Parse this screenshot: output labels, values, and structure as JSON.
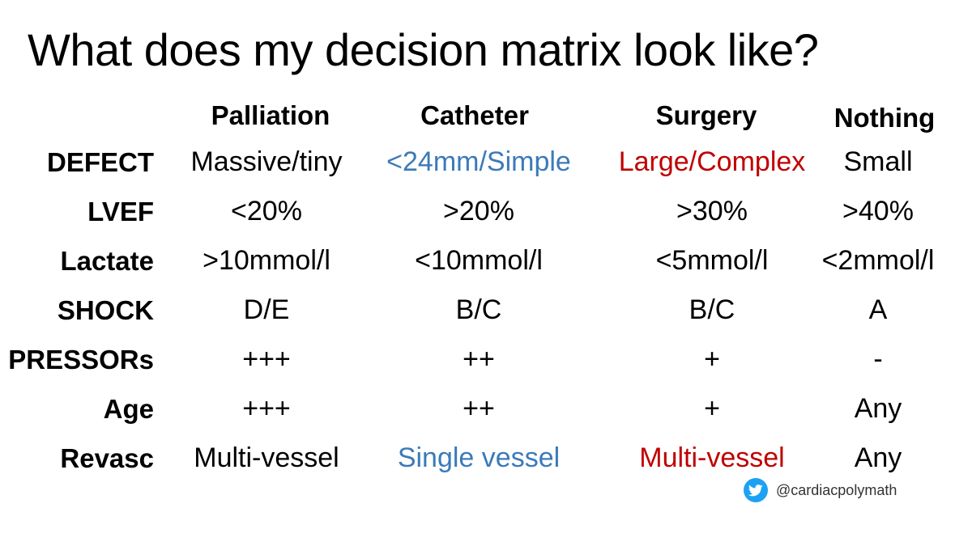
{
  "title": "What does my decision matrix look like?",
  "colors": {
    "default": "#000000",
    "blue": "#3b7ab8",
    "red": "#c00000",
    "twitter": "#1da1f2"
  },
  "columns": [
    "Palliation",
    "Catheter",
    "Surgery",
    "Nothing"
  ],
  "rows": [
    {
      "label": "DEFECT",
      "cells": [
        "Massive/tiny",
        "<24mm/Simple",
        "Large/Complex",
        "Small"
      ]
    },
    {
      "label": "LVEF",
      "cells": [
        "<20%",
        ">20%",
        ">30%",
        ">40%"
      ]
    },
    {
      "label": "Lactate",
      "cells": [
        ">10mmol/l",
        "<10mmol/l",
        "<5mmol/l",
        "<2mmol/l"
      ]
    },
    {
      "label": "SHOCK",
      "cells": [
        "D/E",
        "B/C",
        "B/C",
        "A"
      ]
    },
    {
      "label": "PRESSORs",
      "cells": [
        "+++",
        "++",
        "+",
        "-"
      ]
    },
    {
      "label": "Age",
      "cells": [
        "+++",
        "++",
        "+",
        "Any"
      ]
    },
    {
      "label": "Revasc",
      "cells": [
        "Multi-vessel",
        "Single vessel",
        "Multi-vessel",
        "Any"
      ]
    }
  ],
  "footer": {
    "icon": "twitter-bird-icon",
    "handle": "@cardiacpolymath"
  }
}
